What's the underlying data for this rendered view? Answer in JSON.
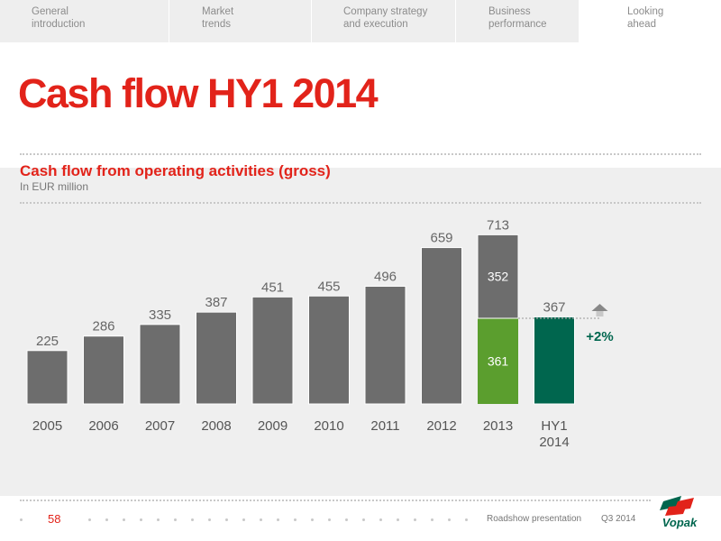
{
  "nav": {
    "tabs": [
      {
        "label": "General\nintroduction"
      },
      {
        "label": "Market\ntrends"
      },
      {
        "label": "Company strategy\nand execution"
      },
      {
        "label": "Business\nperformance"
      },
      {
        "label": "Looking\nahead"
      }
    ],
    "active_index": 4
  },
  "page_title": "Cash flow HY1 2014",
  "footer": {
    "page_number": "58",
    "presentation": "Roadshow presentation",
    "date": "Q3 2014",
    "logo_text": "Vopak"
  },
  "colors": {
    "brand_red": "#e2231a",
    "bar_grey": "#6d6d6d",
    "bar_green_light": "#5b9e2e",
    "bar_green_dark": "#00664e",
    "growth_text": "#00664e"
  },
  "chart_data": {
    "type": "bar",
    "title": "Cash flow from operating activities (gross)",
    "subtitle": "In EUR million",
    "categories": [
      "2005",
      "2006",
      "2007",
      "2008",
      "2009",
      "2010",
      "2011",
      "2012",
      "2013",
      "HY1\n2014"
    ],
    "values": [
      225,
      286,
      335,
      387,
      451,
      455,
      496,
      659,
      713,
      367
    ],
    "stacked_2013": {
      "bottom": 361,
      "top": 352,
      "total": 713
    },
    "growth_annotation": "+2%",
    "ylim": [
      0,
      760
    ],
    "grid": false
  }
}
